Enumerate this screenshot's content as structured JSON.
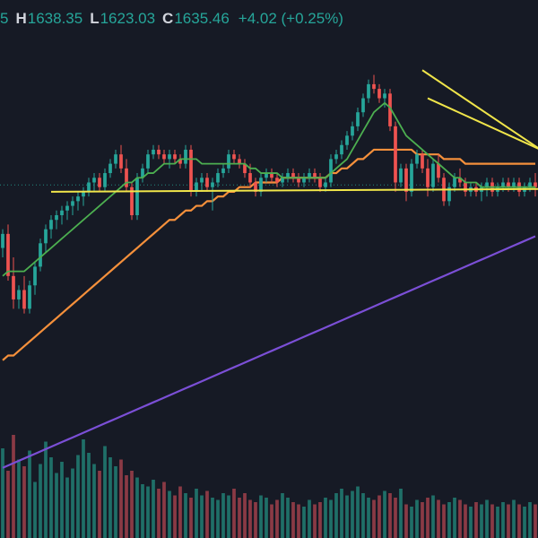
{
  "legend": {
    "open_value_fragment": "5",
    "high_key": "H",
    "high_value": "1638.35",
    "low_key": "L",
    "low_value": "1623.03",
    "close_key": "C",
    "close_value": "1635.46",
    "change_text": "+4.02 (+0.25%)"
  },
  "colors": {
    "background": "#161a25",
    "up": "#26a69a",
    "down": "#ef5350",
    "volume_up": "#1f6f68",
    "volume_down": "#8a3a45",
    "ma_short": "#4caf50",
    "ma_mid": "#f5903b",
    "ma_long": "#7b4fd6",
    "trendline": "#f0e54a",
    "last_price_line": "#26a69a"
  },
  "chart_data": {
    "type": "candlestick",
    "x": [
      1,
      2,
      3,
      4,
      5,
      6,
      7,
      8,
      9,
      10,
      11,
      12,
      13,
      14,
      15,
      16,
      17,
      18,
      19,
      20,
      21,
      22,
      23,
      24,
      25,
      26,
      27,
      28,
      29,
      30,
      31,
      32,
      33,
      34,
      35,
      36,
      37,
      38,
      39,
      40,
      41,
      42,
      43,
      44,
      45,
      46,
      47,
      48,
      49,
      50,
      51,
      52,
      53,
      54,
      55,
      56,
      57,
      58,
      59,
      60,
      61,
      62,
      63,
      64,
      65,
      66,
      67,
      68,
      69,
      70,
      71,
      72,
      73,
      74,
      75,
      76,
      77,
      78,
      79,
      80,
      81,
      82,
      83,
      84,
      85,
      86,
      87,
      88,
      89,
      90,
      91,
      92,
      93,
      94,
      95,
      96,
      97,
      98,
      99,
      100
    ],
    "candles": [
      [
        1622,
        1626,
        1620,
        1625
      ],
      [
        1625,
        1627,
        1615,
        1616
      ],
      [
        1616,
        1620,
        1609,
        1611
      ],
      [
        1611,
        1614,
        1609,
        1613
      ],
      [
        1613,
        1616,
        1608,
        1609
      ],
      [
        1609,
        1615,
        1608,
        1614
      ],
      [
        1614,
        1619,
        1612,
        1618
      ],
      [
        1618,
        1624,
        1617,
        1623
      ],
      [
        1623,
        1627,
        1621,
        1626
      ],
      [
        1626,
        1629,
        1624,
        1628
      ],
      [
        1628,
        1630,
        1626,
        1629
      ],
      [
        1629,
        1631,
        1627,
        1630
      ],
      [
        1630,
        1632,
        1628,
        1631
      ],
      [
        1631,
        1633,
        1629,
        1632
      ],
      [
        1632,
        1634,
        1630,
        1633
      ],
      [
        1633,
        1635,
        1631,
        1634
      ],
      [
        1634,
        1637,
        1633,
        1636
      ],
      [
        1636,
        1638,
        1634,
        1637
      ],
      [
        1637,
        1638,
        1634,
        1635
      ],
      [
        1635,
        1639,
        1634,
        1638
      ],
      [
        1638,
        1641,
        1637,
        1640
      ],
      [
        1640,
        1643,
        1639,
        1642
      ],
      [
        1642,
        1644,
        1638,
        1639
      ],
      [
        1639,
        1641,
        1634,
        1635
      ],
      [
        1635,
        1636,
        1628,
        1629
      ],
      [
        1629,
        1638,
        1628,
        1637
      ],
      [
        1637,
        1640,
        1636,
        1639
      ],
      [
        1639,
        1643,
        1638,
        1642
      ],
      [
        1642,
        1644,
        1641,
        1643
      ],
      [
        1643,
        1644,
        1641,
        1642
      ],
      [
        1642,
        1643,
        1640,
        1641
      ],
      [
        1641,
        1643,
        1639,
        1642
      ],
      [
        1642,
        1643,
        1640,
        1641
      ],
      [
        1641,
        1642,
        1639,
        1640
      ],
      [
        1640,
        1644,
        1639,
        1643
      ],
      [
        1643,
        1644,
        1633,
        1634
      ],
      [
        1634,
        1637,
        1633,
        1636
      ],
      [
        1636,
        1638,
        1634,
        1637
      ],
      [
        1637,
        1638,
        1634,
        1635
      ],
      [
        1635,
        1637,
        1630,
        1636
      ],
      [
        1636,
        1639,
        1635,
        1638
      ],
      [
        1638,
        1640,
        1637,
        1639
      ],
      [
        1639,
        1643,
        1638,
        1642
      ],
      [
        1642,
        1643,
        1640,
        1641
      ],
      [
        1641,
        1642,
        1639,
        1640
      ],
      [
        1640,
        1641,
        1637,
        1638
      ],
      [
        1638,
        1640,
        1635,
        1636
      ],
      [
        1636,
        1637,
        1633,
        1634
      ],
      [
        1634,
        1638,
        1633,
        1637
      ],
      [
        1637,
        1639,
        1636,
        1638
      ],
      [
        1638,
        1639,
        1636,
        1637
      ],
      [
        1637,
        1638,
        1635,
        1636
      ],
      [
        1636,
        1638,
        1635,
        1637
      ],
      [
        1637,
        1639,
        1636,
        1638
      ],
      [
        1638,
        1639,
        1636,
        1637
      ],
      [
        1637,
        1638,
        1635,
        1636
      ],
      [
        1636,
        1638,
        1635,
        1637
      ],
      [
        1637,
        1639,
        1636,
        1638
      ],
      [
        1638,
        1639,
        1636,
        1637
      ],
      [
        1637,
        1638,
        1634,
        1635
      ],
      [
        1635,
        1637,
        1634,
        1636
      ],
      [
        1636,
        1642,
        1635,
        1641
      ],
      [
        1641,
        1643,
        1640,
        1642
      ],
      [
        1642,
        1645,
        1641,
        1644
      ],
      [
        1644,
        1647,
        1643,
        1646
      ],
      [
        1646,
        1649,
        1645,
        1648
      ],
      [
        1648,
        1652,
        1647,
        1651
      ],
      [
        1651,
        1655,
        1650,
        1654
      ],
      [
        1654,
        1658,
        1653,
        1657
      ],
      [
        1657,
        1659,
        1655,
        1656
      ],
      [
        1656,
        1657,
        1653,
        1654
      ],
      [
        1654,
        1656,
        1652,
        1655
      ],
      [
        1655,
        1656,
        1647,
        1648
      ],
      [
        1648,
        1649,
        1634,
        1636
      ],
      [
        1636,
        1640,
        1635,
        1639
      ],
      [
        1639,
        1640,
        1632,
        1634
      ],
      [
        1634,
        1641,
        1633,
        1640
      ],
      [
        1640,
        1643,
        1639,
        1642
      ],
      [
        1642,
        1643,
        1638,
        1639
      ],
      [
        1639,
        1641,
        1633,
        1635
      ],
      [
        1635,
        1641,
        1634,
        1640
      ],
      [
        1640,
        1642,
        1636,
        1637
      ],
      [
        1637,
        1638,
        1631,
        1632
      ],
      [
        1632,
        1636,
        1631,
        1635
      ],
      [
        1635,
        1638,
        1634,
        1637
      ],
      [
        1637,
        1639,
        1635,
        1636
      ],
      [
        1636,
        1637,
        1633,
        1634
      ],
      [
        1634,
        1636,
        1633,
        1635
      ],
      [
        1635,
        1636,
        1633,
        1634
      ],
      [
        1634,
        1636,
        1632,
        1635
      ],
      [
        1635,
        1637,
        1633,
        1636
      ],
      [
        1636,
        1637,
        1633,
        1634
      ],
      [
        1634,
        1636,
        1633,
        1635
      ],
      [
        1635,
        1637,
        1634,
        1636
      ],
      [
        1636,
        1637,
        1634,
        1635
      ],
      [
        1635,
        1637,
        1634,
        1636
      ],
      [
        1636,
        1637,
        1633,
        1634
      ],
      [
        1634,
        1636,
        1633,
        1635
      ],
      [
        1635,
        1637,
        1634,
        1636
      ],
      [
        1636,
        1638,
        1633,
        1635
      ]
    ],
    "volume": [
      80,
      60,
      92,
      70,
      64,
      78,
      50,
      66,
      86,
      72,
      58,
      68,
      54,
      62,
      74,
      88,
      76,
      66,
      60,
      82,
      72,
      64,
      70,
      56,
      60,
      54,
      48,
      46,
      52,
      44,
      50,
      42,
      38,
      46,
      40,
      36,
      44,
      38,
      42,
      36,
      34,
      40,
      38,
      44,
      36,
      40,
      34,
      32,
      38,
      36,
      30,
      34,
      40,
      36,
      32,
      30,
      28,
      34,
      30,
      32,
      36,
      34,
      40,
      44,
      38,
      42,
      46,
      40,
      36,
      34,
      38,
      42,
      40,
      36,
      44,
      30,
      28,
      34,
      32,
      36,
      38,
      34,
      30,
      32,
      36,
      34,
      30,
      28,
      32,
      30,
      34,
      30,
      28,
      32,
      30,
      34,
      30,
      28,
      32,
      30
    ],
    "ma_short": [
      1616,
      1617,
      1617,
      1617,
      1617,
      1618,
      1619,
      1620,
      1621,
      1622,
      1623,
      1624,
      1625,
      1626,
      1627,
      1628,
      1629,
      1630,
      1631,
      1632,
      1633,
      1634,
      1635,
      1636,
      1636,
      1637,
      1637,
      1638,
      1638,
      1639,
      1640,
      1640,
      1640,
      1641,
      1641,
      1641,
      1641,
      1640,
      1640,
      1640,
      1640,
      1640,
      1640,
      1640,
      1640,
      1640,
      1639,
      1639,
      1638,
      1638,
      1638,
      1638,
      1637,
      1637,
      1637,
      1637,
      1637,
      1637,
      1637,
      1637,
      1637,
      1638,
      1639,
      1640,
      1641,
      1643,
      1645,
      1647,
      1649,
      1651,
      1652,
      1653,
      1652,
      1650,
      1648,
      1646,
      1645,
      1644,
      1643,
      1642,
      1641,
      1640,
      1639,
      1638,
      1637,
      1637,
      1636,
      1636,
      1636,
      1635,
      1635,
      1635,
      1635,
      1635,
      1635,
      1635,
      1635,
      1635,
      1635,
      1635
    ],
    "ma_mid": [
      1598,
      1599,
      1599,
      1600,
      1601,
      1602,
      1603,
      1604,
      1605,
      1606,
      1607,
      1608,
      1609,
      1610,
      1611,
      1612,
      1613,
      1614,
      1615,
      1616,
      1617,
      1618,
      1619,
      1620,
      1621,
      1622,
      1623,
      1624,
      1625,
      1626,
      1627,
      1628,
      1628,
      1629,
      1630,
      1630,
      1631,
      1631,
      1632,
      1632,
      1633,
      1633,
      1634,
      1634,
      1635,
      1635,
      1635,
      1636,
      1636,
      1636,
      1636,
      1636,
      1637,
      1637,
      1637,
      1637,
      1637,
      1637,
      1637,
      1637,
      1637,
      1638,
      1638,
      1639,
      1639,
      1640,
      1641,
      1641,
      1642,
      1643,
      1643,
      1643,
      1643,
      1643,
      1643,
      1643,
      1643,
      1642,
      1642,
      1642,
      1642,
      1642,
      1641,
      1641,
      1641,
      1641,
      1640,
      1640,
      1640,
      1640,
      1640,
      1640,
      1640,
      1640,
      1640,
      1640,
      1640,
      1640,
      1640,
      1640
    ],
    "ma_long": [
      1575,
      1575.5,
      1576,
      1576.5,
      1577,
      1577.5,
      1578,
      1578.5,
      1579,
      1579.5,
      1580,
      1580.5,
      1581,
      1581.5,
      1582,
      1582.5,
      1583,
      1583.5,
      1584,
      1584.5,
      1585,
      1585.5,
      1586,
      1586.5,
      1587,
      1587.5,
      1588,
      1588.5,
      1589,
      1589.5,
      1590,
      1590.5,
      1591,
      1591.5,
      1592,
      1592.5,
      1593,
      1593.5,
      1594,
      1594.5,
      1595,
      1595.5,
      1596,
      1596.5,
      1597,
      1597.5,
      1598,
      1598.5,
      1599,
      1599.5,
      1600,
      1600.5,
      1601,
      1601.5,
      1602,
      1602.5,
      1603,
      1603.5,
      1604,
      1604.5,
      1605,
      1605.5,
      1606,
      1606.5,
      1607,
      1607.5,
      1608,
      1608.5,
      1609,
      1609.5,
      1610,
      1610.5,
      1611,
      1611.5,
      1612,
      1612.5,
      1613,
      1613.5,
      1614,
      1614.5,
      1615,
      1615.5,
      1616,
      1616.5,
      1617,
      1617.5,
      1618,
      1618.5,
      1619,
      1619.5,
      1620,
      1620.5,
      1621,
      1621.5,
      1622,
      1622.5,
      1623,
      1623.5,
      1624,
      1624.5
    ],
    "last_price": 1635.46,
    "ylim": [
      1560,
      1675
    ],
    "volume_max": 120,
    "trendlines": [
      {
        "name": "support",
        "x": [
          10,
          100
        ],
        "y": [
          1634,
          1634.6
        ]
      },
      {
        "name": "resistance",
        "x": [
          80,
          100
        ],
        "y": [
          1654,
          1643
        ]
      },
      {
        "name": "upper",
        "x": [
          79,
          100
        ],
        "y": [
          1660,
          1643
        ]
      }
    ],
    "grid": false
  }
}
